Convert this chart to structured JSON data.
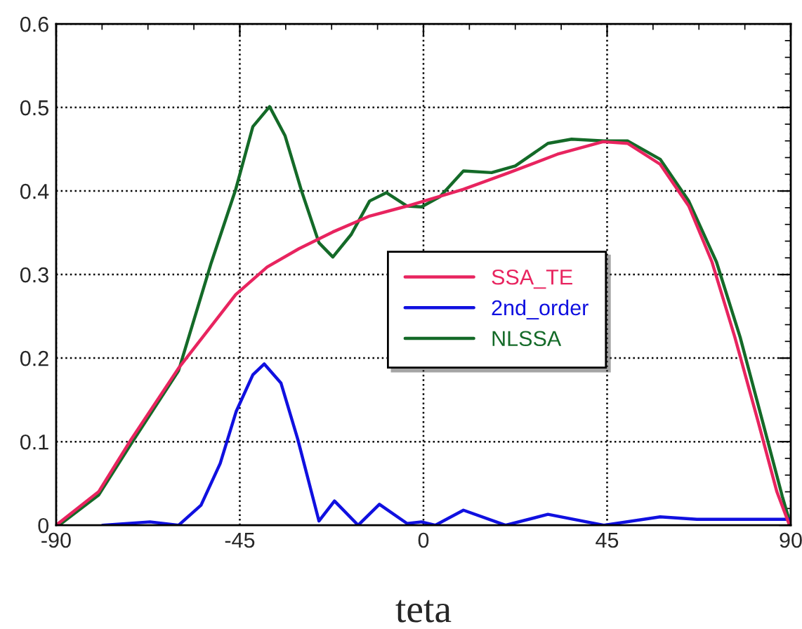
{
  "chart_data": {
    "type": "line",
    "xlabel": "teta",
    "xlim": [
      -90,
      90
    ],
    "xticks": [
      -90,
      -45,
      0,
      45,
      90
    ],
    "ylim": [
      0,
      0.6
    ],
    "yticks": [
      0,
      0.1,
      0.2,
      0.3,
      0.4,
      0.5,
      0.6
    ],
    "grid": true,
    "legend": "center",
    "line_style": "solid",
    "series": [
      {
        "name": "SSA_TE",
        "color": "#e8245f",
        "x": [
          -90,
          -79.6,
          -71.7,
          -60,
          -46,
          -38.3,
          -30.5,
          -22.2,
          -13.2,
          -4,
          9.8,
          21,
          32.8,
          44,
          50,
          58,
          65,
          70.7,
          76.3,
          82,
          86.6,
          89.7
        ],
        "values": [
          0,
          0.04,
          0.102,
          0.188,
          0.276,
          0.309,
          0.331,
          0.351,
          0.37,
          0.382,
          0.402,
          0.422,
          0.444,
          0.459,
          0.457,
          0.432,
          0.382,
          0.315,
          0.225,
          0.124,
          0.04,
          0
        ]
      },
      {
        "name": "2nd_order",
        "color": "#1010e0",
        "x": [
          -78.6,
          -67,
          -60,
          -54.5,
          -49.8,
          -45.9,
          -41.8,
          -39,
          -34.9,
          -30.8,
          -25.6,
          -21.8,
          -16,
          -10.8,
          -4,
          -0.5,
          2.9,
          9.8,
          20.1,
          30.5,
          44.2,
          58,
          67,
          89.7
        ],
        "values": [
          0,
          0.004,
          0,
          0.024,
          0.074,
          0.136,
          0.18,
          0.193,
          0.17,
          0.103,
          0.005,
          0.029,
          0,
          0.025,
          0.002,
          0.004,
          0,
          0.018,
          0,
          0.013,
          0,
          0.01,
          0.007,
          0.007
        ]
      },
      {
        "name": "NLSSA",
        "color": "#146a28",
        "x": [
          -89.3,
          -79.6,
          -71.7,
          -60,
          -52,
          -46,
          -41.8,
          -37.7,
          -33.9,
          -29.8,
          -25.6,
          -22.2,
          -17.7,
          -13.2,
          -9.1,
          -4,
          -0.5,
          4,
          9.8,
          16.7,
          22.5,
          30.5,
          36.3,
          44.2,
          50,
          58,
          65,
          71.8,
          77.6,
          83.1,
          87.9,
          90
        ],
        "values": [
          0,
          0.036,
          0.097,
          0.185,
          0.314,
          0.402,
          0.477,
          0.501,
          0.466,
          0.399,
          0.338,
          0.321,
          0.348,
          0.388,
          0.398,
          0.382,
          0.381,
          0.393,
          0.424,
          0.422,
          0.43,
          0.457,
          0.462,
          0.46,
          0.46,
          0.438,
          0.388,
          0.315,
          0.225,
          0.124,
          0.035,
          0
        ]
      }
    ]
  }
}
